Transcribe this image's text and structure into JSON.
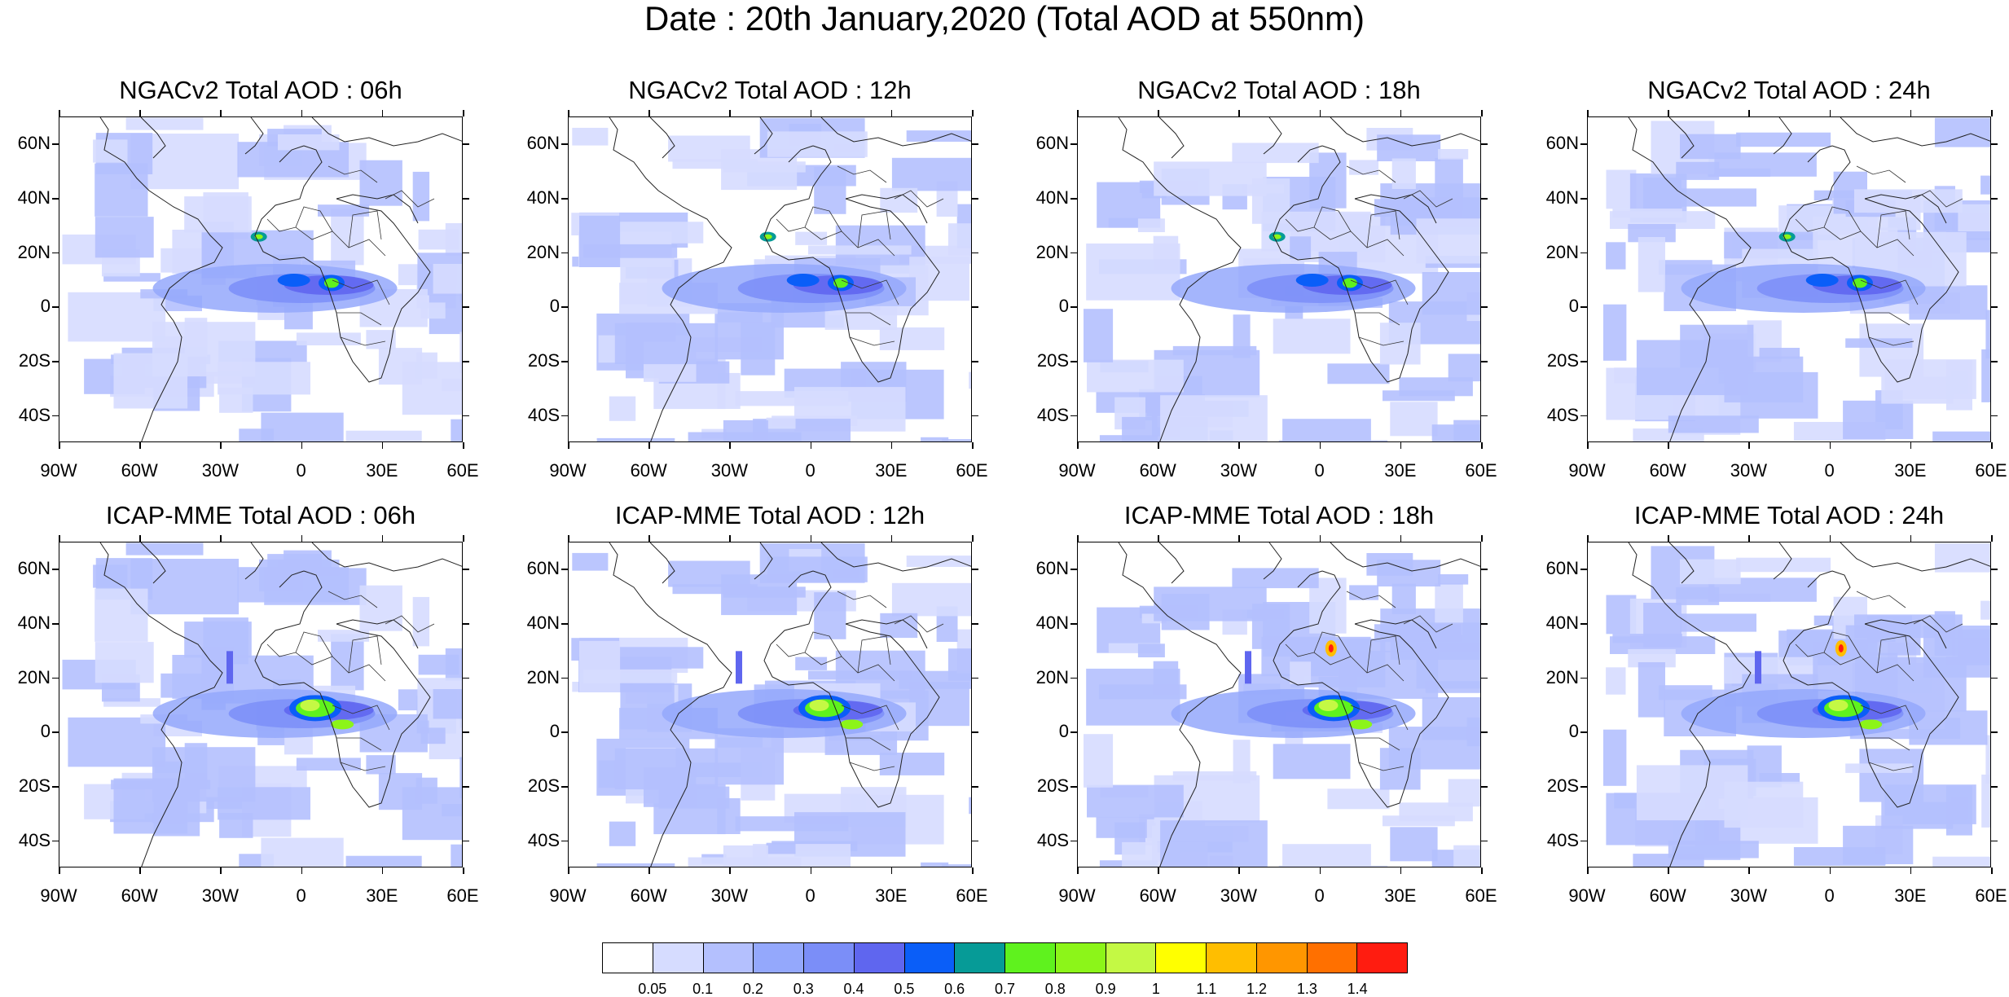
{
  "title": "Date : 20th January,2020 (Total AOD at 550nm)",
  "panels": [
    {
      "title": "NGACv2 Total AOD : 06h",
      "row": 0,
      "col": 0,
      "model": "NGACv2",
      "hour": "06h"
    },
    {
      "title": "NGACv2 Total AOD : 12h",
      "row": 0,
      "col": 1,
      "model": "NGACv2",
      "hour": "12h"
    },
    {
      "title": "NGACv2 Total AOD : 18h",
      "row": 0,
      "col": 2,
      "model": "NGACv2",
      "hour": "18h"
    },
    {
      "title": "NGACv2 Total AOD : 24h",
      "row": 0,
      "col": 3,
      "model": "NGACv2",
      "hour": "24h"
    },
    {
      "title": "ICAP-MME Total AOD : 06h",
      "row": 1,
      "col": 0,
      "model": "ICAP-MME",
      "hour": "06h"
    },
    {
      "title": "ICAP-MME Total AOD : 12h",
      "row": 1,
      "col": 1,
      "model": "ICAP-MME",
      "hour": "12h"
    },
    {
      "title": "ICAP-MME Total AOD : 18h",
      "row": 1,
      "col": 2,
      "model": "ICAP-MME",
      "hour": "18h"
    },
    {
      "title": "ICAP-MME Total AOD : 24h",
      "row": 1,
      "col": 3,
      "model": "ICAP-MME",
      "hour": "24h"
    }
  ],
  "lat_labels": [
    "60N",
    "40N",
    "20N",
    "0",
    "20S",
    "40S"
  ],
  "lon_labels": [
    "90W",
    "60W",
    "30W",
    "0",
    "30E",
    "60E"
  ],
  "colorbar": {
    "labels": [
      "0.05",
      "0.1",
      "0.2",
      "0.3",
      "0.4",
      "0.5",
      "0.6",
      "0.7",
      "0.8",
      "0.9",
      "1",
      "1.1",
      "1.2",
      "1.3",
      "1.4"
    ],
    "colors": [
      "#ffffff",
      "#d6dcff",
      "#b4c0fe",
      "#94a8fc",
      "#7b8ef8",
      "#5f66ef",
      "#0a5ef8",
      "#069b97",
      "#5ff21e",
      "#8cf519",
      "#c4f944",
      "#ffff00",
      "#ffbe00",
      "#ff9600",
      "#ff7000",
      "#ff1c10"
    ]
  }
}
